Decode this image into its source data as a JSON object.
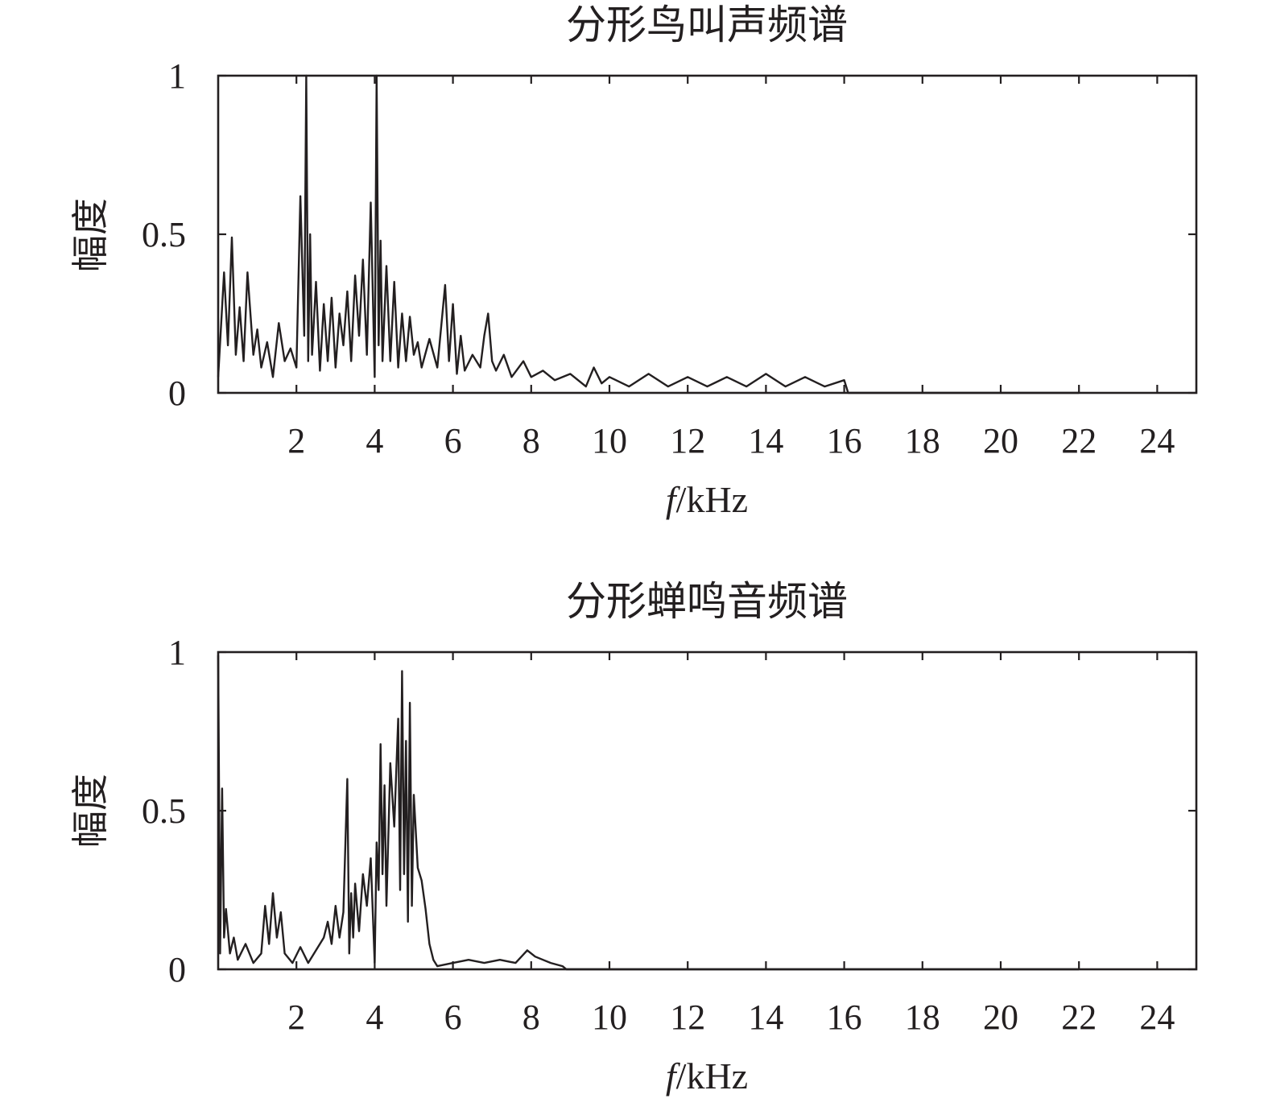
{
  "chart_data": [
    {
      "type": "line",
      "title": "分形鸟叫声频谱",
      "xlabel_italic": "f",
      "xlabel_unit": "/kHz",
      "ylabel": "幅度",
      "xlim": [
        0,
        25
      ],
      "ylim": [
        0,
        1
      ],
      "xticks": [
        2,
        4,
        6,
        8,
        10,
        12,
        14,
        16,
        18,
        20,
        22,
        24
      ],
      "yticks": [
        0,
        0.5,
        1
      ],
      "ytick_labels": [
        "0",
        "0.5",
        "1"
      ],
      "grid": false,
      "series": [
        {
          "x": [
            0.0,
            0.15,
            0.25,
            0.35,
            0.45,
            0.55,
            0.65,
            0.75,
            0.9,
            1.0,
            1.1,
            1.25,
            1.4,
            1.55,
            1.7,
            1.85,
            2.0,
            2.1,
            2.2,
            2.25,
            2.3,
            2.35,
            2.4,
            2.5,
            2.6,
            2.7,
            2.8,
            2.9,
            3.0,
            3.1,
            3.2,
            3.3,
            3.4,
            3.5,
            3.6,
            3.7,
            3.8,
            3.9,
            4.0,
            4.05,
            4.1,
            4.15,
            4.2,
            4.3,
            4.4,
            4.5,
            4.6,
            4.7,
            4.8,
            4.9,
            5.0,
            5.1,
            5.2,
            5.4,
            5.6,
            5.8,
            5.9,
            6.0,
            6.1,
            6.2,
            6.3,
            6.5,
            6.7,
            6.8,
            6.9,
            7.0,
            7.1,
            7.3,
            7.5,
            7.8,
            8.0,
            8.3,
            8.6,
            9.0,
            9.4,
            9.6,
            9.8,
            10.0,
            10.5,
            11.0,
            11.5,
            12.0,
            12.5,
            13.0,
            13.5,
            14.0,
            14.5,
            15.0,
            15.5,
            16.0,
            16.1,
            22.0
          ],
          "y": [
            0.05,
            0.38,
            0.15,
            0.49,
            0.12,
            0.27,
            0.1,
            0.38,
            0.12,
            0.2,
            0.08,
            0.16,
            0.05,
            0.22,
            0.1,
            0.14,
            0.08,
            0.62,
            0.18,
            1.0,
            0.1,
            0.5,
            0.12,
            0.35,
            0.07,
            0.28,
            0.1,
            0.3,
            0.08,
            0.25,
            0.15,
            0.32,
            0.1,
            0.37,
            0.18,
            0.42,
            0.12,
            0.6,
            0.05,
            1.0,
            0.15,
            0.48,
            0.1,
            0.4,
            0.1,
            0.35,
            0.08,
            0.25,
            0.1,
            0.24,
            0.12,
            0.16,
            0.08,
            0.17,
            0.08,
            0.34,
            0.1,
            0.28,
            0.06,
            0.18,
            0.07,
            0.12,
            0.08,
            0.18,
            0.25,
            0.1,
            0.07,
            0.12,
            0.05,
            0.1,
            0.05,
            0.07,
            0.04,
            0.06,
            0.02,
            0.08,
            0.03,
            0.05,
            0.02,
            0.06,
            0.02,
            0.05,
            0.02,
            0.05,
            0.02,
            0.06,
            0.02,
            0.05,
            0.02,
            0.04,
            0.0,
            0.0
          ]
        }
      ]
    },
    {
      "type": "line",
      "title": "分形蝉鸣音频谱",
      "xlabel_italic": "f",
      "xlabel_unit": "/kHz",
      "ylabel": "幅度",
      "xlim": [
        0,
        25
      ],
      "ylim": [
        0,
        1
      ],
      "xticks": [
        2,
        4,
        6,
        8,
        10,
        12,
        14,
        16,
        18,
        20,
        22,
        24
      ],
      "yticks": [
        0,
        0.5,
        1
      ],
      "ytick_labels": [
        "0",
        "0.5",
        "1"
      ],
      "grid": false,
      "series": [
        {
          "x": [
            0.0,
            0.05,
            0.1,
            0.15,
            0.2,
            0.3,
            0.4,
            0.5,
            0.7,
            0.9,
            1.1,
            1.2,
            1.3,
            1.4,
            1.5,
            1.6,
            1.7,
            1.9,
            2.1,
            2.3,
            2.5,
            2.7,
            2.8,
            2.9,
            3.0,
            3.1,
            3.2,
            3.3,
            3.35,
            3.4,
            3.45,
            3.5,
            3.6,
            3.7,
            3.8,
            3.9,
            4.0,
            4.05,
            4.1,
            4.15,
            4.2,
            4.25,
            4.3,
            4.4,
            4.5,
            4.6,
            4.65,
            4.7,
            4.75,
            4.8,
            4.85,
            4.9,
            4.95,
            5.0,
            5.1,
            5.2,
            5.3,
            5.4,
            5.5,
            5.6,
            6.0,
            6.4,
            6.8,
            7.2,
            7.6,
            7.9,
            8.1,
            8.3,
            8.5,
            8.8,
            8.9,
            22.0
          ],
          "y": [
            0.99,
            0.05,
            0.57,
            0.1,
            0.19,
            0.05,
            0.1,
            0.03,
            0.08,
            0.02,
            0.05,
            0.2,
            0.08,
            0.24,
            0.1,
            0.18,
            0.05,
            0.02,
            0.07,
            0.02,
            0.06,
            0.1,
            0.15,
            0.08,
            0.2,
            0.1,
            0.18,
            0.6,
            0.05,
            0.24,
            0.1,
            0.27,
            0.12,
            0.3,
            0.2,
            0.35,
            0.02,
            0.4,
            0.25,
            0.71,
            0.3,
            0.58,
            0.2,
            0.65,
            0.45,
            0.79,
            0.25,
            0.94,
            0.3,
            0.72,
            0.15,
            0.84,
            0.2,
            0.55,
            0.32,
            0.28,
            0.19,
            0.08,
            0.03,
            0.01,
            0.02,
            0.03,
            0.02,
            0.03,
            0.02,
            0.06,
            0.04,
            0.03,
            0.02,
            0.01,
            0.0,
            0.0
          ]
        }
      ]
    }
  ]
}
